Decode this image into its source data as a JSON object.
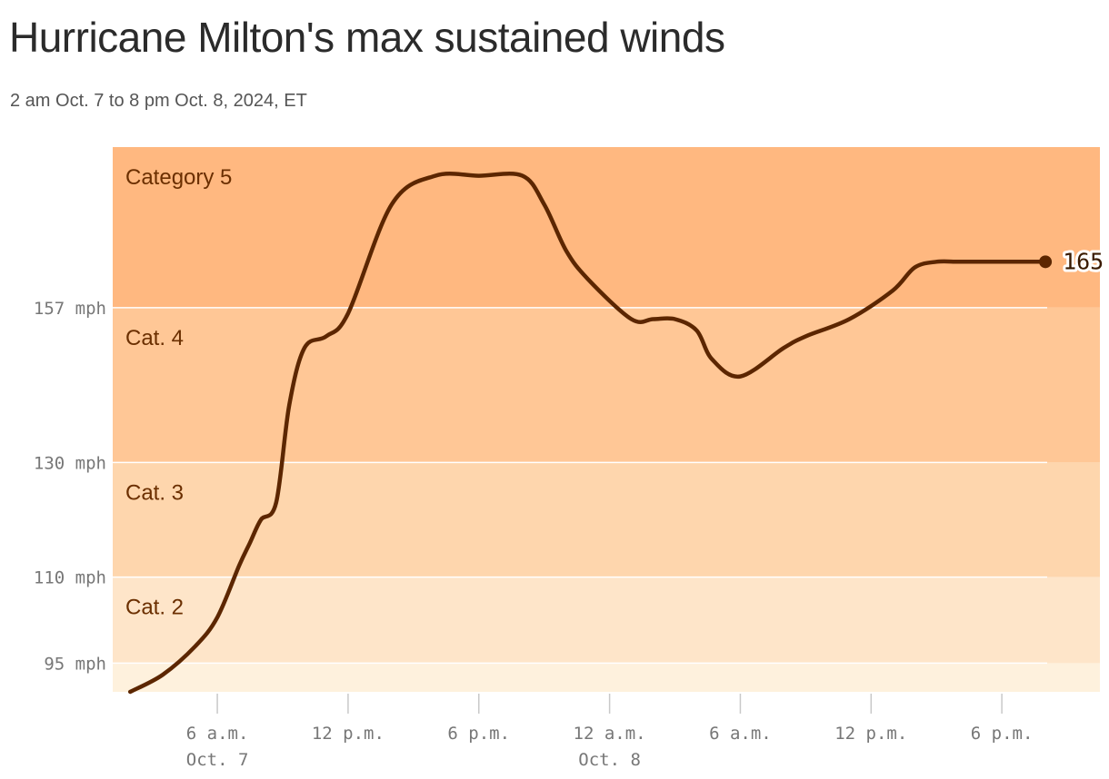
{
  "title": "Hurricane Milton's max sustained winds",
  "subtitle": "2 am Oct. 7 to 8 pm Oct. 8, 2024, ET",
  "colors": {
    "line": "#5c2600",
    "band_label": "#6b2f00",
    "axis_text": "#777777",
    "gridline": "#ffffff",
    "band_cat5": "#ffb880",
    "band_cat4": "#ffc796",
    "band_cat3": "#fed6ad",
    "band_cat2": "#fee5c9",
    "band_cat1": "#fef1dd"
  },
  "chart_data": {
    "type": "line",
    "title": "Hurricane Milton's max sustained winds",
    "subtitle": "2 am Oct. 7 to 8 pm Oct. 8, 2024, ET",
    "xlabel": "",
    "ylabel": "",
    "x_unit": "hours since 12 a.m. Oct. 7 (ET)",
    "xlim": [
      1.2,
      46.5
    ],
    "ylim": [
      90,
      185
    ],
    "grid": false,
    "series": [
      {
        "name": "Max sustained winds",
        "x": [
          2,
          3.5,
          5,
          6,
          7,
          7.5,
          8,
          8.7,
          9.3,
          10,
          11,
          12,
          14,
          16,
          18,
          20,
          21,
          22,
          23,
          25,
          26,
          27,
          28,
          28.7,
          30,
          32,
          33,
          35,
          37,
          38,
          39,
          40,
          41,
          42,
          44
        ],
        "y": [
          90,
          93,
          98,
          103,
          112,
          116,
          120,
          123,
          140,
          150,
          152,
          156,
          175,
          180,
          180,
          180,
          175,
          167,
          162,
          155,
          155,
          155,
          153,
          148,
          145,
          150,
          152,
          155,
          160,
          164,
          165,
          165,
          165,
          165,
          165
        ]
      }
    ],
    "last_point_label": "165",
    "x_ticks": [
      {
        "value": 6,
        "label": "6 a.m.",
        "sublabel": "Oct. 7"
      },
      {
        "value": 12,
        "label": "12 p.m.",
        "sublabel": ""
      },
      {
        "value": 18,
        "label": "6 p.m.",
        "sublabel": ""
      },
      {
        "value": 24,
        "label": "12 a.m.",
        "sublabel": "Oct. 8"
      },
      {
        "value": 30,
        "label": "6 a.m.",
        "sublabel": ""
      },
      {
        "value": 36,
        "label": "12 p.m.",
        "sublabel": ""
      },
      {
        "value": 42,
        "label": "6 p.m.",
        "sublabel": ""
      }
    ],
    "y_ticks": [
      {
        "value": 95,
        "label": "95 mph"
      },
      {
        "value": 110,
        "label": "110 mph"
      },
      {
        "value": 130,
        "label": "130 mph"
      },
      {
        "value": 157,
        "label": "157 mph"
      }
    ],
    "bands": [
      {
        "name": "Category 5",
        "from": 157,
        "to": 185,
        "color": "#ffb880"
      },
      {
        "name": "Cat. 4",
        "from": 130,
        "to": 157,
        "color": "#ffc796"
      },
      {
        "name": "Cat. 3",
        "from": 110,
        "to": 130,
        "color": "#fed6ad"
      },
      {
        "name": "Cat. 2",
        "from": 95,
        "to": 110,
        "color": "#fee5c9"
      },
      {
        "name": "",
        "from": 90,
        "to": 95,
        "color": "#fef1dd"
      }
    ]
  }
}
